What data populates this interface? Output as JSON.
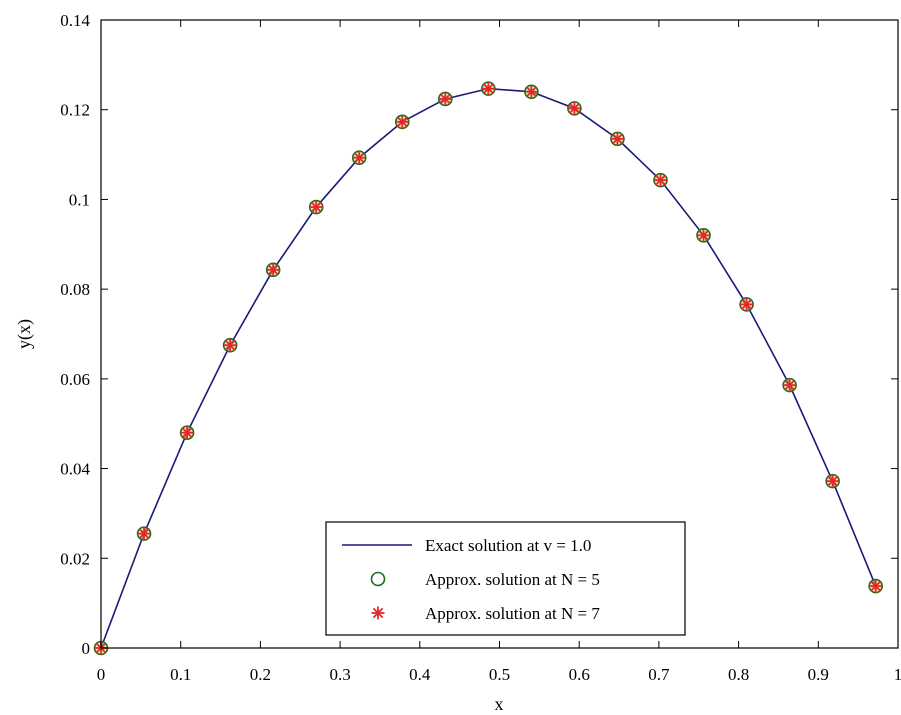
{
  "chart_data": {
    "type": "line",
    "title": "",
    "xlabel": "x",
    "ylabel": "y(x)",
    "xlim": [
      0,
      1
    ],
    "ylim": [
      0,
      0.14
    ],
    "xticks": [
      0,
      0.1,
      0.2,
      0.3,
      0.4,
      0.5,
      0.6,
      0.7,
      0.8,
      0.9,
      1
    ],
    "xtick_labels": [
      "0",
      "0.1",
      "0.2",
      "0.3",
      "0.4",
      "0.5",
      "0.6",
      "0.7",
      "0.8",
      "0.9",
      "1"
    ],
    "yticks": [
      0,
      0.02,
      0.04,
      0.06,
      0.08,
      0.1,
      0.12,
      0.14
    ],
    "ytick_labels": [
      "0",
      "0.02",
      "0.04",
      "0.06",
      "0.08",
      "0.1",
      "0.12",
      "0.14"
    ],
    "grid": false,
    "legend_position": "bottom-center",
    "series": [
      {
        "name": "Exact solution at v = 1.0",
        "style": "line",
        "color": "#1a1a7a",
        "x": [
          0,
          0.054,
          0.108,
          0.162,
          0.216,
          0.27,
          0.324,
          0.378,
          0.432,
          0.486,
          0.54,
          0.594,
          0.648,
          0.702,
          0.756,
          0.81,
          0.864,
          0.918,
          0.972
        ],
        "y": [
          0,
          0.0255,
          0.048,
          0.0675,
          0.0843,
          0.0983,
          0.1093,
          0.1173,
          0.1224,
          0.1247,
          0.124,
          0.1203,
          0.1135,
          0.1043,
          0.092,
          0.0766,
          0.0586,
          0.0372,
          0.0138
        ]
      },
      {
        "name": "Approx. solution at N = 5",
        "style": "circle",
        "color": "#1f6b1f",
        "x": [
          0,
          0.054,
          0.108,
          0.162,
          0.216,
          0.27,
          0.324,
          0.378,
          0.432,
          0.486,
          0.54,
          0.594,
          0.648,
          0.702,
          0.756,
          0.81,
          0.864,
          0.918,
          0.972
        ],
        "y": [
          0,
          0.0255,
          0.048,
          0.0675,
          0.0843,
          0.0983,
          0.1093,
          0.1173,
          0.1224,
          0.1247,
          0.124,
          0.1203,
          0.1135,
          0.1043,
          0.092,
          0.0766,
          0.0586,
          0.0372,
          0.0138
        ]
      },
      {
        "name": "Approx. solution at N = 7",
        "style": "star",
        "color": "#e0282e",
        "x": [
          0,
          0.054,
          0.108,
          0.162,
          0.216,
          0.27,
          0.324,
          0.378,
          0.432,
          0.486,
          0.54,
          0.594,
          0.648,
          0.702,
          0.756,
          0.81,
          0.864,
          0.918,
          0.972
        ],
        "y": [
          0,
          0.0255,
          0.048,
          0.0675,
          0.0843,
          0.0983,
          0.1093,
          0.1173,
          0.1224,
          0.1247,
          0.124,
          0.1203,
          0.1135,
          0.1043,
          0.092,
          0.0766,
          0.0586,
          0.0372,
          0.0138
        ]
      }
    ]
  }
}
